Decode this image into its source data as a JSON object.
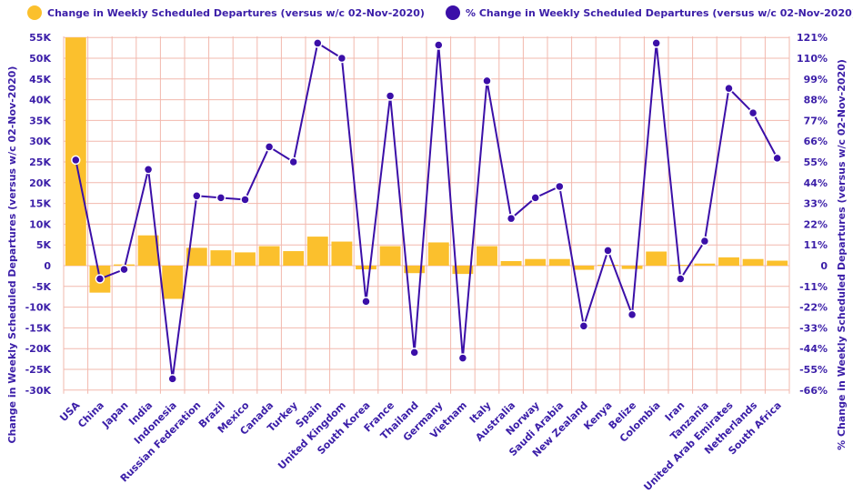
{
  "chart_data": {
    "type": "bar+line",
    "legend": [
      {
        "name": "Change in Weekly Scheduled Departures (versus w/c 02-Nov-2020)",
        "color": "#fbc02d",
        "marker": "circle"
      },
      {
        "name": "% Change in Weekly Scheduled Departures (versus w/c 02-Nov-2020)",
        "color": "#3b0fa8",
        "marker": "circle"
      }
    ],
    "legend_position": "top",
    "categories": [
      "USA",
      "China",
      "Japan",
      "India",
      "Indonesia",
      "Russian Federation",
      "Brazil",
      "Mexico",
      "Canada",
      "Turkey",
      "Spain",
      "United Kingdom",
      "South Korea",
      "France",
      "Thailand",
      "Germany",
      "Vietnam",
      "Italy",
      "Australia",
      "Norway",
      "Saudi Arabia",
      "New Zealand",
      "Kenya",
      "Belize",
      "Colombia",
      "Iran",
      "Tanzania",
      "United Arab Emirates",
      "Netherlands",
      "South Africa"
    ],
    "series": [
      {
        "name": "Change in Weekly Scheduled Departures (versus w/c 02-Nov-2020)",
        "type": "bar",
        "axis": "left",
        "color": "#fbc02d",
        "values": [
          55000,
          -6500,
          300,
          7300,
          -8000,
          4300,
          3700,
          3200,
          4700,
          3500,
          7000,
          5800,
          -900,
          4700,
          -1800,
          5600,
          -2000,
          4700,
          1100,
          1600,
          1600,
          -1000,
          200,
          -800,
          3400,
          200,
          500,
          2000,
          1600,
          1200
        ]
      },
      {
        "name": "% Change in Weekly Scheduled Departures (versus w/c 02-Nov-2020)",
        "type": "line",
        "axis": "right",
        "color": "#3b0fa8",
        "values": [
          56,
          -7,
          -2,
          51,
          -60,
          37,
          36,
          35,
          63,
          55,
          118,
          110,
          -19,
          90,
          -46,
          117,
          -49,
          98,
          25,
          36,
          42,
          -32,
          8,
          -26,
          118,
          -7,
          13,
          94,
          81,
          57
        ]
      }
    ],
    "y_left": {
      "label": "Change in Weekly Scheduled Departures (versus w/c 02-Nov-2020)",
      "ticks": [
        "55K",
        "50K",
        "45K",
        "40K",
        "35K",
        "30K",
        "25K",
        "20K",
        "15K",
        "10K",
        "5K",
        "0",
        "-5K",
        "-10K",
        "-15K",
        "-20K",
        "-25K",
        "-30K"
      ],
      "range": [
        -30000,
        55000
      ]
    },
    "y_right": {
      "label": "% Change in Weekly Scheduled Departures (versus w/c 02-Nov-2020)",
      "ticks": [
        "121%",
        "110%",
        "99%",
        "88%",
        "77%",
        "66%",
        "55%",
        "44%",
        "33%",
        "22%",
        "11%",
        "0",
        "-11%",
        "-22%",
        "-33%",
        "-44%",
        "-55%",
        "-66%"
      ],
      "range": [
        -66,
        121
      ]
    },
    "grid": true
  }
}
